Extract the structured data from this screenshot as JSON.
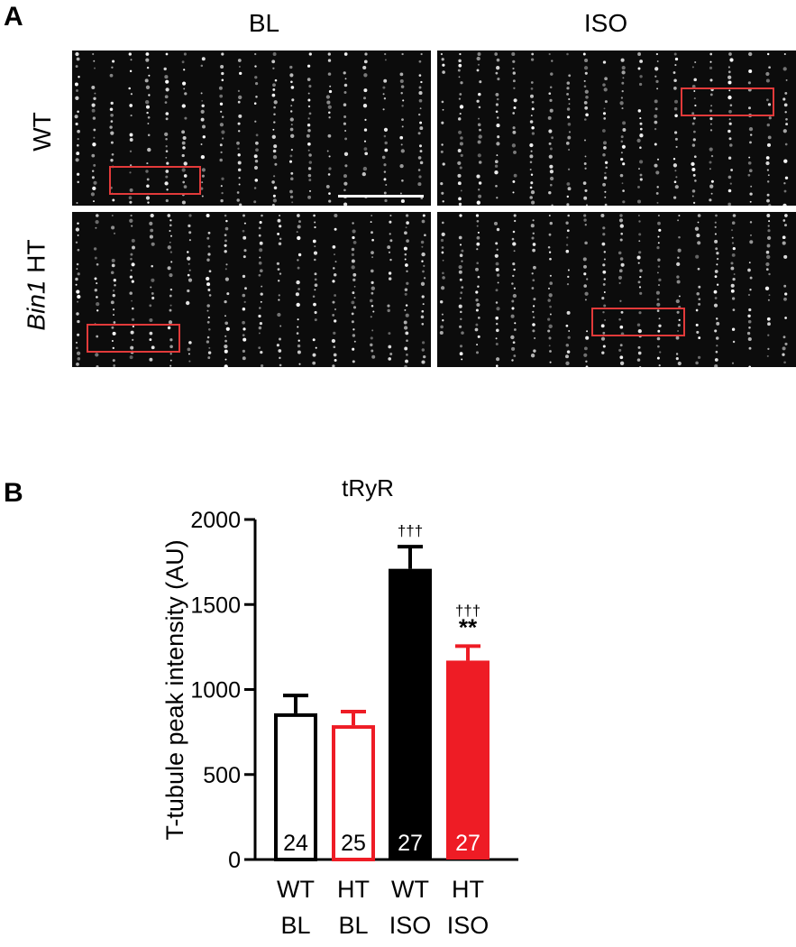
{
  "panel_a": {
    "letter": "A",
    "columns": [
      "BL",
      "ISO"
    ],
    "rows": [
      {
        "label": "WT",
        "italic": ""
      },
      {
        "label": "HT",
        "italic": "Bin1"
      }
    ]
  },
  "panel_b": {
    "letter": "B"
  },
  "colors": {
    "roi": "#e23a3a",
    "wt": "#000000",
    "ht": "#ee1c25",
    "image_bg": "#0c0c0c",
    "striation": "#ffffff"
  },
  "chart_data": {
    "type": "bar",
    "title": "tRyR",
    "ylabel": "T-tubule peak intensity (AU)",
    "xlabel": "",
    "ylim": [
      0,
      2000
    ],
    "yticks": [
      0,
      500,
      1000,
      1500,
      2000
    ],
    "grid": false,
    "categories": [
      {
        "line1": "WT",
        "line2": "BL"
      },
      {
        "line1": "HT",
        "line2": "BL"
      },
      {
        "line1": "WT",
        "line2": "ISO"
      },
      {
        "line1": "HT",
        "line2": "ISO"
      }
    ],
    "values": [
      860,
      790,
      1710,
      1170
    ],
    "errors": [
      105,
      80,
      130,
      85
    ],
    "n_labels": [
      "24",
      "25",
      "27",
      "27"
    ],
    "fill": [
      "none",
      "none",
      "#000000",
      "#ee1c25"
    ],
    "edge": [
      "#000000",
      "#ee1c25",
      "#000000",
      "#ee1c25"
    ],
    "annotations": [
      {
        "bar": 2,
        "lines": [
          "†††"
        ]
      },
      {
        "bar": 3,
        "lines": [
          "†††",
          "**"
        ]
      }
    ]
  }
}
